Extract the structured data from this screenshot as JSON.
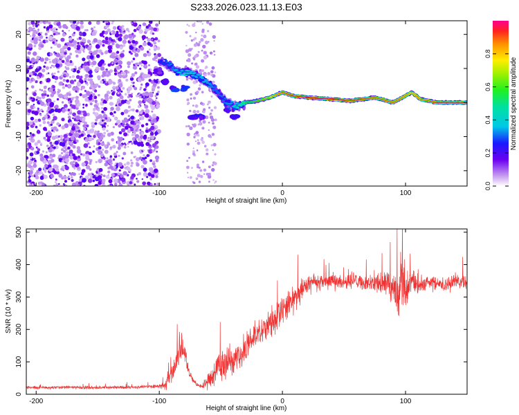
{
  "title": "S233.2026.023.11.13.E03",
  "chart_data": [
    {
      "type": "heatmap",
      "xlabel": "Height of straight line (km)",
      "ylabel": "Frequency (Hz)",
      "xlim": [
        -208,
        150
      ],
      "ylim": [
        -24.5,
        24
      ],
      "x_ticks": [
        -200,
        -100,
        0,
        100
      ],
      "y_ticks": [
        -20,
        -10,
        0,
        10,
        20
      ],
      "colorbar": {
        "label": "Normalized spectral amplitude",
        "range": [
          0,
          1
        ],
        "ticks": [
          "0.0",
          "0.2",
          "0.4",
          "0.6",
          "0.8"
        ]
      },
      "noise_region_x": [
        -208,
        -100
      ],
      "ridge": [
        {
          "x": -100,
          "y": 12,
          "amp": 0.25
        },
        {
          "x": -92,
          "y": 11,
          "amp": 0.3
        },
        {
          "x": -85,
          "y": 9,
          "amp": 0.35
        },
        {
          "x": -78,
          "y": 9,
          "amp": 0.4
        },
        {
          "x": -70,
          "y": 8,
          "amp": 0.35
        },
        {
          "x": -62,
          "y": 6,
          "amp": 0.35
        },
        {
          "x": -55,
          "y": 4,
          "amp": 0.3
        },
        {
          "x": -48,
          "y": 1,
          "amp": 0.3
        },
        {
          "x": -40,
          "y": -1,
          "amp": 0.35
        },
        {
          "x": -35,
          "y": -1,
          "amp": 0.45
        },
        {
          "x": -30,
          "y": 0,
          "amp": 0.55
        },
        {
          "x": -20,
          "y": 0.5,
          "amp": 0.65
        },
        {
          "x": -10,
          "y": 1.5,
          "amp": 0.75
        },
        {
          "x": 0,
          "y": 3,
          "amp": 0.85
        },
        {
          "x": 8,
          "y": 2,
          "amp": 0.9
        },
        {
          "x": 20,
          "y": 1.5,
          "amp": 0.95
        },
        {
          "x": 40,
          "y": 1,
          "amp": 0.95
        },
        {
          "x": 55,
          "y": 0.5,
          "amp": 0.9
        },
        {
          "x": 65,
          "y": 1,
          "amp": 0.9
        },
        {
          "x": 75,
          "y": 1.5,
          "amp": 0.85
        },
        {
          "x": 90,
          "y": 0,
          "amp": 0.85
        },
        {
          "x": 100,
          "y": 2,
          "amp": 0.8
        },
        {
          "x": 105,
          "y": 3,
          "amp": 0.75
        },
        {
          "x": 112,
          "y": 1,
          "amp": 0.8
        },
        {
          "x": 125,
          "y": 0,
          "amp": 0.9
        },
        {
          "x": 140,
          "y": 0,
          "amp": 0.9
        },
        {
          "x": 150,
          "y": 0,
          "amp": 0.9
        }
      ],
      "secondary_ridge": [
        {
          "x": -100,
          "y": 9,
          "amp": 0.2
        },
        {
          "x": -95,
          "y": 6,
          "amp": 0.3
        },
        {
          "x": -88,
          "y": 4,
          "amp": 0.35
        },
        {
          "x": -80,
          "y": 4,
          "amp": 0.3
        },
        {
          "x": -72,
          "y": -4,
          "amp": 0.3
        },
        {
          "x": -66,
          "y": -4,
          "amp": 0.25
        },
        {
          "x": -45,
          "y": -2,
          "amp": 0.3
        },
        {
          "x": -38,
          "y": -4,
          "amp": 0.25
        }
      ]
    },
    {
      "type": "line",
      "xlabel": "Height of straight line (km)",
      "ylabel": "SNR (10 * v/v)",
      "xlim": [
        -208,
        150
      ],
      "ylim": [
        0,
        510
      ],
      "x_ticks": [
        -200,
        -100,
        0,
        100
      ],
      "y_ticks": [
        0,
        100,
        200,
        300,
        400,
        500
      ],
      "series": [
        {
          "name": "SNR",
          "color": "#ef3333",
          "x": [
            -208,
            -180,
            -150,
            -120,
            -100,
            -95,
            -90,
            -85,
            -82,
            -80,
            -78,
            -75,
            -70,
            -65,
            -60,
            -55,
            -50,
            -45,
            -40,
            -35,
            -30,
            -25,
            -20,
            -15,
            -10,
            -5,
            0,
            5,
            10,
            15,
            20,
            25,
            30,
            40,
            50,
            60,
            70,
            80,
            85,
            90,
            95,
            97,
            100,
            105,
            110,
            120,
            130,
            140,
            150
          ],
          "values": [
            20,
            22,
            20,
            22,
            25,
            30,
            60,
            110,
            150,
            140,
            100,
            60,
            30,
            25,
            40,
            70,
            90,
            100,
            100,
            110,
            140,
            170,
            190,
            210,
            225,
            240,
            260,
            285,
            300,
            320,
            340,
            350,
            345,
            350,
            340,
            350,
            345,
            345,
            350,
            330,
            300,
            380,
            320,
            350,
            340,
            345,
            330,
            350,
            340
          ],
          "amplitude": [
            6,
            6,
            6,
            6,
            8,
            15,
            35,
            45,
            60,
            50,
            35,
            20,
            8,
            10,
            30,
            50,
            60,
            60,
            55,
            45,
            45,
            50,
            55,
            55,
            60,
            60,
            60,
            55,
            50,
            45,
            35,
            30,
            30,
            30,
            30,
            30,
            35,
            40,
            50,
            60,
            80,
            110,
            70,
            40,
            35,
            30,
            30,
            30,
            30
          ]
        }
      ]
    }
  ]
}
